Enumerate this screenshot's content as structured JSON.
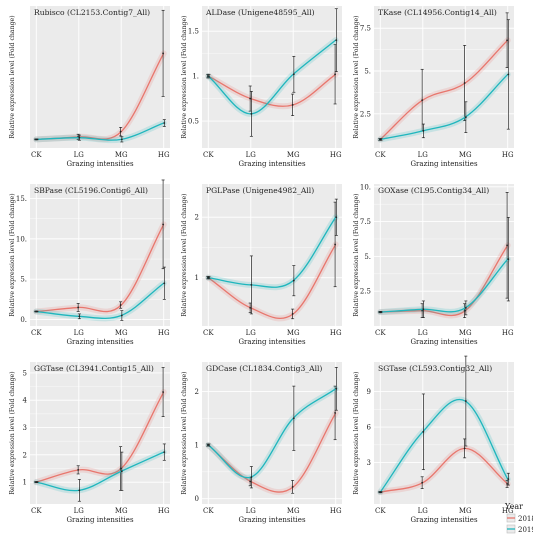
{
  "colors": {
    "y2018": "#e8766d",
    "y2019": "#1fb6bd",
    "panel_bg": "#ebebeb",
    "grid": "#ffffff",
    "err": "#222222"
  },
  "legend": {
    "title": "Year",
    "items": [
      "2018",
      "2019"
    ]
  },
  "chart_data": [
    {
      "type": "line",
      "title": "Rubisco (CL2153.Contig7_All)",
      "xlabel": "Grazing intensities",
      "ylabel": "Relative expression level (Fold change)",
      "categories": [
        "CK",
        "LG",
        "MG",
        "HG"
      ],
      "ylim": [
        0,
        16.5
      ],
      "yticks": [],
      "series": [
        {
          "name": "2018",
          "values": [
            1.0,
            1.3,
            1.9,
            11.0
          ],
          "err": [
            0.05,
            0.3,
            0.5,
            5.0
          ]
        },
        {
          "name": "2019",
          "values": [
            1.0,
            1.2,
            1.0,
            2.9
          ],
          "err": [
            0.05,
            0.3,
            0.3,
            0.4
          ]
        }
      ]
    },
    {
      "type": "line",
      "title": "ALDase (Unigene48595_All)",
      "xlabel": "Grazing intensities",
      "ylabel": "Relative expression level (Fold change)",
      "categories": [
        "CK",
        "LG",
        "MG",
        "HG"
      ],
      "ylim": [
        0.2,
        1.78
      ],
      "yticks": [
        0.5,
        1.0,
        1.5
      ],
      "ytick_labels": [
        "0.5",
        "1.",
        "1.5"
      ],
      "series": [
        {
          "name": "2018",
          "values": [
            1.0,
            0.75,
            0.68,
            1.02
          ],
          "err": [
            0.02,
            0.14,
            0.12,
            0.33
          ]
        },
        {
          "name": "2019",
          "values": [
            1.0,
            0.58,
            1.02,
            1.4
          ],
          "err": [
            0.02,
            0.25,
            0.2,
            0.35
          ]
        }
      ]
    },
    {
      "type": "line",
      "title": "TKase (CL14956.Contig14_All)",
      "xlabel": "Grazing intensities",
      "ylabel": "Relative expression level (Fold change)",
      "categories": [
        "CK",
        "LG",
        "MG",
        "HG"
      ],
      "ylim": [
        0.5,
        8.8
      ],
      "yticks": [
        2.5,
        5.0,
        7.5
      ],
      "ytick_labels": [
        "2.5",
        "5.",
        "7.5"
      ],
      "series": [
        {
          "name": "2018",
          "values": [
            1.0,
            3.3,
            4.3,
            6.8
          ],
          "err": [
            0.05,
            1.8,
            2.2,
            1.6
          ]
        },
        {
          "name": "2019",
          "values": [
            1.0,
            1.5,
            2.3,
            4.8
          ],
          "err": [
            0.05,
            0.4,
            0.9,
            3.2
          ]
        }
      ]
    },
    {
      "type": "line",
      "title": "SBPase (CL5196.Contig6_All)",
      "xlabel": "Grazing intensities",
      "ylabel": "Relative expression level (Fold change)",
      "categories": [
        "CK",
        "LG",
        "MG",
        "HG"
      ],
      "ylim": [
        -0.8,
        16.8
      ],
      "yticks": [
        0,
        5,
        10,
        15
      ],
      "ytick_labels": [
        "0.",
        "5.",
        "10.",
        "15."
      ],
      "series": [
        {
          "name": "2018",
          "values": [
            1.0,
            1.5,
            1.8,
            11.8
          ],
          "err": [
            0.05,
            0.5,
            0.4,
            5.5
          ]
        },
        {
          "name": "2019",
          "values": [
            1.0,
            0.4,
            0.5,
            4.5
          ],
          "err": [
            0.05,
            0.3,
            0.6,
            2.0
          ]
        }
      ]
    },
    {
      "type": "line",
      "title": "PGLPase (Unigene4982_All)",
      "xlabel": "Grazing intensities",
      "ylabel": "Relative expression level (Fold change)",
      "categories": [
        "CK",
        "LG",
        "MG",
        "HG"
      ],
      "ylim": [
        0.2,
        2.55
      ],
      "yticks": [
        1,
        2
      ],
      "ytick_labels": [
        "1",
        "2"
      ],
      "series": [
        {
          "name": "2018",
          "values": [
            1.0,
            0.5,
            0.4,
            1.55
          ],
          "err": [
            0.02,
            0.08,
            0.08,
            0.7
          ]
        },
        {
          "name": "2019",
          "values": [
            1.0,
            0.88,
            0.95,
            2.0
          ],
          "err": [
            0.02,
            0.48,
            0.25,
            0.3
          ]
        }
      ]
    },
    {
      "type": "line",
      "title": "GOXase (CL95.Contig34_All)",
      "xlabel": "Grazing intensities",
      "ylabel": "Relative expression level (Fold change)",
      "categories": [
        "CK",
        "LG",
        "MG",
        "HG"
      ],
      "ylim": [
        0,
        10.2
      ],
      "yticks": [
        2.5,
        5.0,
        7.5,
        10.0
      ],
      "ytick_labels": [
        "2.5",
        "5.",
        "7.5",
        "10."
      ],
      "series": [
        {
          "name": "2018",
          "values": [
            1.0,
            1.1,
            1.1,
            5.8
          ],
          "err": [
            0.05,
            0.5,
            0.5,
            3.8
          ]
        },
        {
          "name": "2019",
          "values": [
            1.0,
            1.2,
            1.3,
            4.8
          ],
          "err": [
            0.05,
            0.6,
            0.5,
            3.0
          ]
        }
      ]
    },
    {
      "type": "line",
      "title": "GGTase (CL3941.Contig15_All)",
      "xlabel": "Grazing intensities",
      "ylabel": "Relative expression level (Fold change)",
      "categories": [
        "CK",
        "LG",
        "MG",
        "HG"
      ],
      "ylim": [
        0.2,
        5.4
      ],
      "yticks": [
        1,
        2,
        3,
        4,
        5
      ],
      "ytick_labels": [
        "1",
        "2",
        "3",
        "4",
        "5"
      ],
      "series": [
        {
          "name": "2018",
          "values": [
            1.0,
            1.45,
            1.5,
            4.3
          ],
          "err": [
            0.02,
            0.15,
            0.8,
            0.9
          ]
        },
        {
          "name": "2019",
          "values": [
            1.0,
            0.7,
            1.4,
            2.1
          ],
          "err": [
            0.02,
            0.4,
            0.7,
            0.3
          ]
        }
      ]
    },
    {
      "type": "line",
      "title": "GDCase (CL1834.Contig3_All)",
      "xlabel": "Grazing intensities",
      "ylabel": "Relative expression level (Fold change)",
      "categories": [
        "CK",
        "LG",
        "MG",
        "HG"
      ],
      "ylim": [
        -0.1,
        2.55
      ],
      "yticks": [
        0,
        1,
        2
      ],
      "ytick_labels": [
        "0",
        "1",
        "2"
      ],
      "series": [
        {
          "name": "2018",
          "values": [
            1.0,
            0.32,
            0.22,
            1.6
          ],
          "err": [
            0.02,
            0.08,
            0.12,
            0.5
          ]
        },
        {
          "name": "2019",
          "values": [
            1.0,
            0.4,
            1.5,
            2.05
          ],
          "err": [
            0.02,
            0.2,
            0.6,
            0.4
          ]
        }
      ]
    },
    {
      "type": "line",
      "title": "SGTase (CL593.Contig32_All)",
      "xlabel": "Grazing intensities",
      "ylabel": "Relative expression level (Fold change)",
      "categories": [
        "CK",
        "LG",
        "MG",
        "HG"
      ],
      "ylim": [
        -0.5,
        11.5
      ],
      "yticks": [
        3,
        6,
        9
      ],
      "ytick_labels": [
        "3",
        "6",
        "9"
      ],
      "series": [
        {
          "name": "2018",
          "values": [
            0.5,
            1.3,
            4.2,
            1.2
          ],
          "err": [
            0.05,
            0.5,
            0.8,
            0.3
          ]
        },
        {
          "name": "2019",
          "values": [
            0.5,
            5.6,
            8.2,
            1.6
          ],
          "err": [
            0.05,
            3.2,
            3.8,
            0.5
          ]
        }
      ]
    }
  ]
}
